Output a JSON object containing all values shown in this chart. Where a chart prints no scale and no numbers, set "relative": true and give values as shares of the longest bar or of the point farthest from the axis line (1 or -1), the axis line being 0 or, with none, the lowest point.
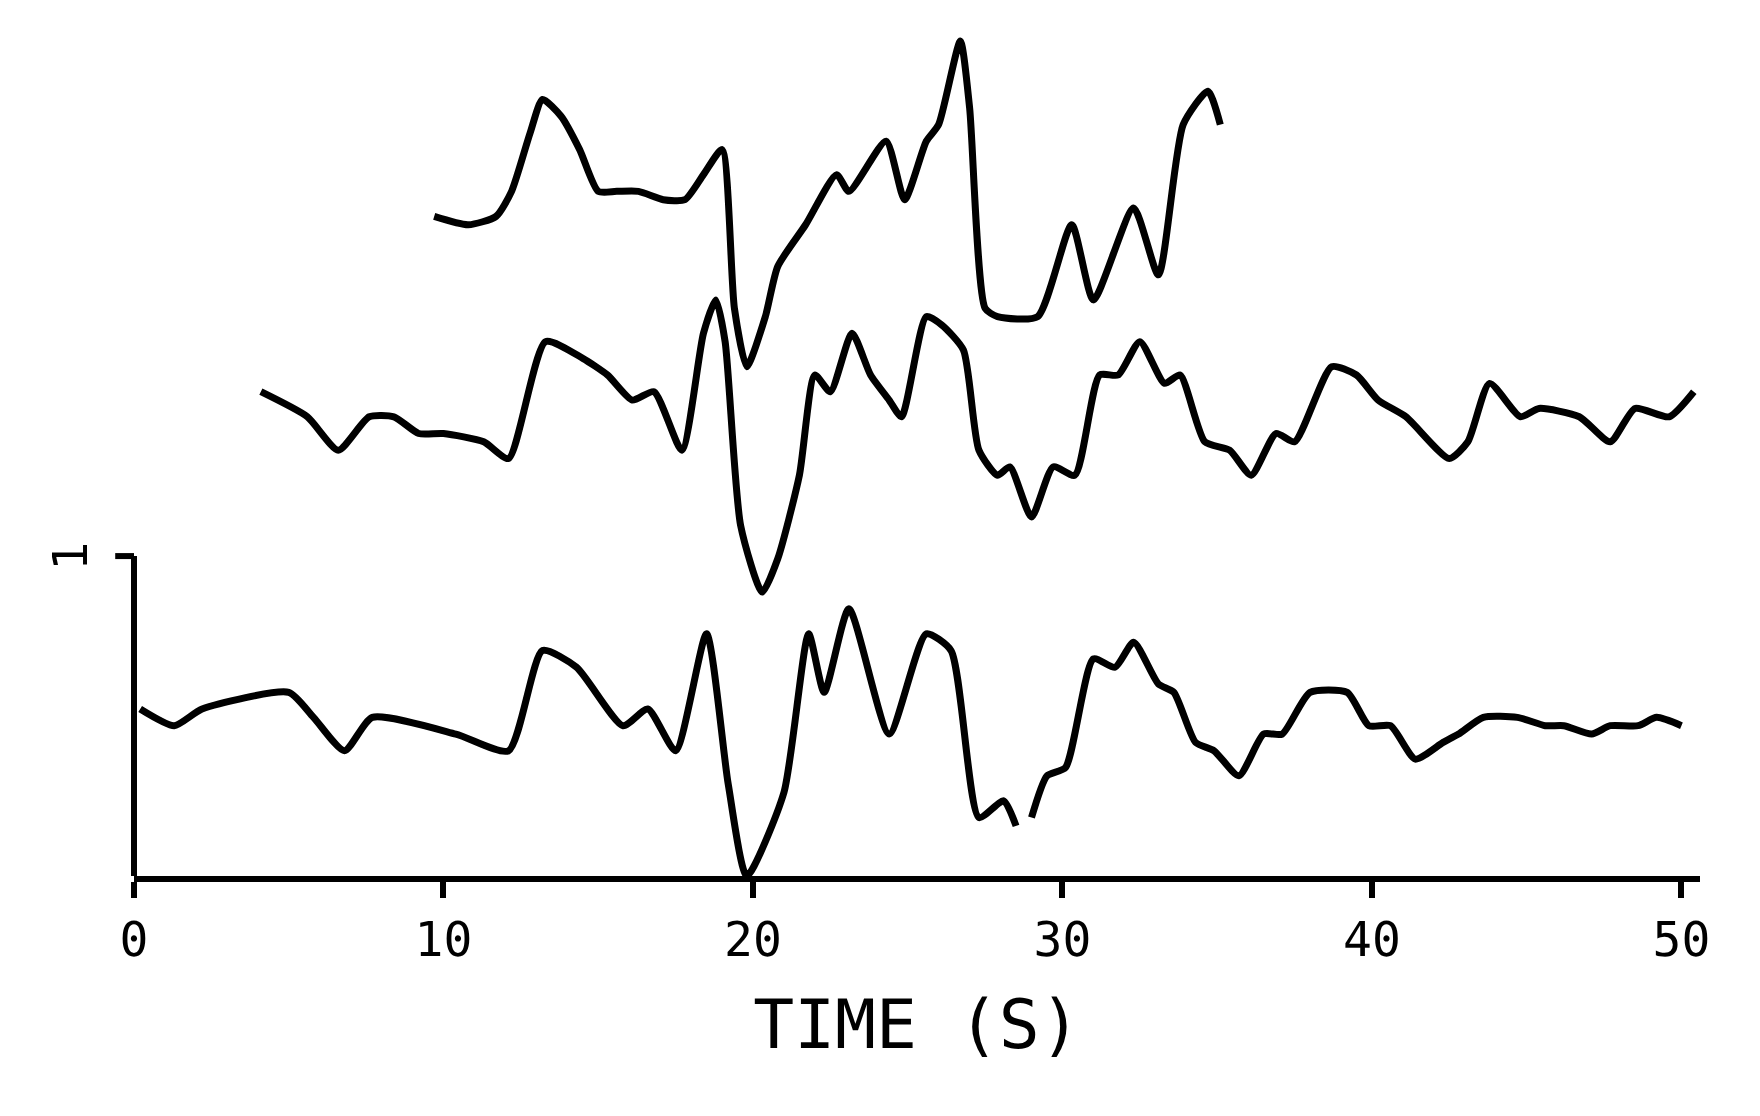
{
  "chart_data": {
    "type": "line",
    "xlabel": "TIME (S)",
    "xlim": [
      0,
      50.6
    ],
    "xticks": [
      0,
      10,
      20,
      30,
      40,
      50
    ],
    "relative": true,
    "marker": "none",
    "line_style": "solid",
    "annotations": [
      "1"
    ],
    "series": [
      {
        "color": "#000000",
        "x": [
          9.7,
          10.8,
          11.7,
          12.2,
          12.8,
          13.2,
          13.8,
          14.4,
          15.0,
          15.6,
          16.3,
          17.1,
          17.8,
          18.4,
          19.0,
          19.4,
          19.8,
          20.4,
          20.8,
          21.7,
          22.7,
          23.1,
          24.3,
          24.9,
          25.6,
          26.0,
          26.7,
          27.0,
          27.5,
          27.9,
          29.2,
          30.3,
          31.0,
          32.3,
          33.1,
          33.9,
          34.7,
          35.1
        ],
        "values": [
          0.79,
          0.78,
          0.79,
          0.82,
          0.89,
          0.93,
          0.91,
          0.87,
          0.82,
          0.82,
          0.82,
          0.81,
          0.81,
          0.84,
          0.87,
          0.68,
          0.61,
          0.67,
          0.73,
          0.78,
          0.84,
          0.82,
          0.88,
          0.81,
          0.88,
          0.9,
          1,
          0.92,
          0.68,
          0.67,
          0.67,
          0.78,
          0.69,
          0.8,
          0.72,
          0.9,
          0.94,
          0.9
        ]
      },
      {
        "color": "#000000",
        "x": [
          4.1,
          5.6,
          6.6,
          7.6,
          8.4,
          9.2,
          10.0,
          11.3,
          12.1,
          13.3,
          14.5,
          15.3,
          16.1,
          16.8,
          17.7,
          18.4,
          18.8,
          19.1,
          19.6,
          20.3,
          20.8,
          21.5,
          22.0,
          22.5,
          23.2,
          23.8,
          24.4,
          24.8,
          25.6,
          26.1,
          26.8,
          27.3,
          27.9,
          28.3,
          29.0,
          29.7,
          30.4,
          31.2,
          31.8,
          32.5,
          33.3,
          33.8,
          34.6,
          35.4,
          36.1,
          36.9,
          37.5,
          38.7,
          39.5,
          40.2,
          41.1,
          42.5,
          43.1,
          43.8,
          44.8,
          45.4,
          46.7,
          47.7,
          48.5,
          49.6,
          50.4
        ],
        "values": [
          0.58,
          0.55,
          0.51,
          0.55,
          0.55,
          0.53,
          0.53,
          0.52,
          0.5,
          0.64,
          0.62,
          0.6,
          0.57,
          0.58,
          0.51,
          0.65,
          0.69,
          0.64,
          0.42,
          0.34,
          0.38,
          0.48,
          0.6,
          0.58,
          0.65,
          0.6,
          0.57,
          0.55,
          0.67,
          0.66,
          0.63,
          0.51,
          0.48,
          0.49,
          0.43,
          0.49,
          0.48,
          0.6,
          0.6,
          0.64,
          0.59,
          0.6,
          0.52,
          0.51,
          0.48,
          0.53,
          0.52,
          0.61,
          0.6,
          0.57,
          0.55,
          0.5,
          0.52,
          0.59,
          0.55,
          0.56,
          0.55,
          0.52,
          0.56,
          0.55,
          0.58
        ]
      },
      {
        "color": "#000000",
        "x": [
          0.2,
          1.3,
          2.2,
          5.0,
          5.8,
          6.8,
          7.7,
          10.4,
          12.1,
          13.2,
          14.3,
          15.8,
          16.6,
          17.5,
          18.5,
          19.2,
          19.8,
          21.0,
          21.8,
          22.3,
          23.1,
          24.4,
          25.6,
          26.4,
          27.3,
          28.1,
          28.5,
          28.7,
          29.0,
          29.5,
          30.1,
          31.0,
          31.7,
          32.3,
          33.1,
          33.6,
          34.3,
          34.9,
          35.7,
          36.5,
          37.1,
          38.0,
          39.2,
          39.9,
          40.6,
          41.4,
          42.3,
          42.8,
          43.6,
          44.7,
          45.6,
          46.2,
          47.1,
          47.7,
          48.6,
          49.2,
          50.0
        ],
        "values": [
          0.2,
          0.18,
          0.2,
          0.22,
          0.19,
          0.15,
          0.19,
          0.17,
          0.15,
          0.27,
          0.25,
          0.18,
          0.2,
          0.15,
          0.29,
          0.11,
          0,
          0.1,
          0.29,
          0.22,
          0.32,
          0.17,
          0.29,
          0.27,
          0.07,
          0.09,
          0.06,
          null,
          0.07,
          0.12,
          0.13,
          0.26,
          0.25,
          0.28,
          0.23,
          0.22,
          0.16,
          0.15,
          0.12,
          0.17,
          0.17,
          0.22,
          0.22,
          0.18,
          0.18,
          0.14,
          0.16,
          0.17,
          0.19,
          0.19,
          0.18,
          0.18,
          0.17,
          0.18,
          0.18,
          0.19,
          0.18
        ]
      }
    ]
  }
}
